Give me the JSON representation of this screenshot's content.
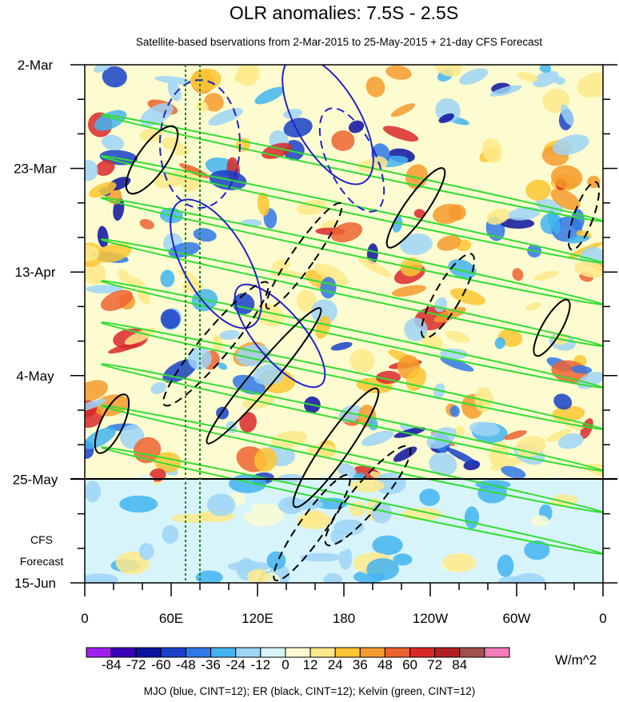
{
  "chart_data": {
    "type": "heatmap",
    "title": "OLR anomalies: 7.5S - 2.5S",
    "subtitle": "Satellite-based bservations from 2-Mar-2015 to 25-May-2015 + 21-day CFS Forecast",
    "xlabel": "",
    "ylabel": "",
    "x_ticks": [
      "0",
      "60E",
      "120E",
      "180",
      "120W",
      "60W",
      "0"
    ],
    "x_range_deg_east": [
      0,
      360
    ],
    "y_ticks": [
      "2-Mar",
      "23-Mar",
      "13-Apr",
      "4-May",
      "25-May",
      "15-Jun"
    ],
    "y_range": [
      "2-Mar-2015",
      "15-Jun-2015"
    ],
    "observation_end": "25-May-2015",
    "forecast_label": [
      "CFS",
      "Forecast"
    ],
    "colorbar": {
      "unit": "W/m^2",
      "levels": [
        "-84",
        "-72",
        "-60",
        "-48",
        "-36",
        "-24",
        "-12",
        "0",
        "12",
        "24",
        "36",
        "48",
        "60",
        "72",
        "84"
      ],
      "colors": [
        "#a020f0",
        "#3a00b8",
        "#0a12a0",
        "#1840c8",
        "#2f78e8",
        "#42b4f0",
        "#9ed4f6",
        "#d8f4fb",
        "#fcfcd0",
        "#fee98a",
        "#fdc533",
        "#f59a2c",
        "#ed6330",
        "#d9282a",
        "#b22222",
        "#a0524d",
        "#f47ab8"
      ]
    },
    "contours": "MJO (blue, CINT=12); ER (black, CINT=12); Kelvin (green, CINT=12)",
    "reference_longitudes": [
      "70E",
      "80E"
    ]
  }
}
